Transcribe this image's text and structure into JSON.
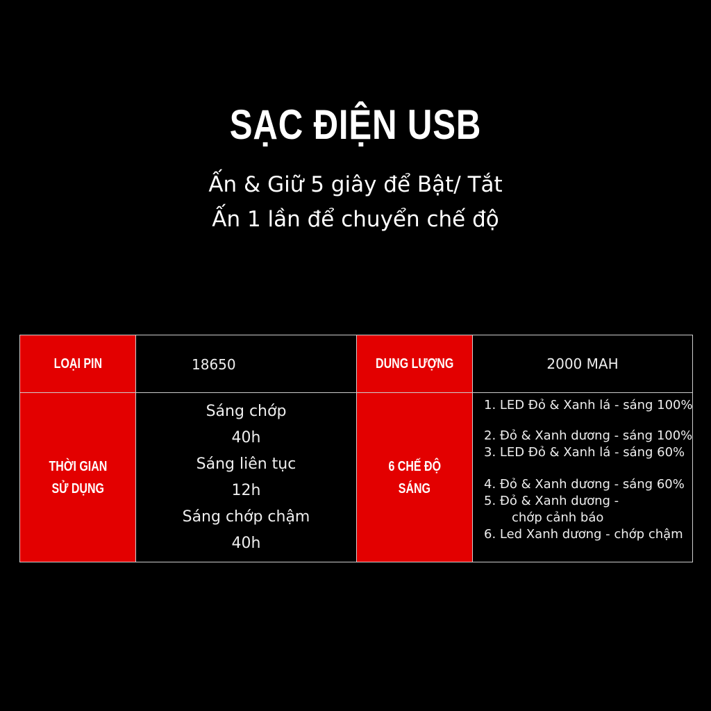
{
  "title": "SẠC ĐIỆN USB",
  "subtitle_lines": [
    "Ấn & Giữ 5 giây để Bật/ Tắt",
    "Ấn 1 lần để chuyển chế độ"
  ],
  "table": {
    "battery_label": "LOẠI PIN",
    "battery_value": "18650",
    "capacity_label": "DUNG LƯỢNG",
    "capacity_value": "2000 MAH",
    "usage_label": [
      "THỜI GIAN",
      "SỬ DỤNG"
    ],
    "usage": [
      {
        "mode": "Sáng chớp",
        "time": "40h"
      },
      {
        "mode": "Sáng liên tục",
        "time": "12h"
      },
      {
        "mode": "Sáng chớp chậm",
        "time": "40h"
      }
    ],
    "modes_label": [
      "6 CHẾ ĐỘ",
      "SÁNG"
    ],
    "modes": [
      "1. LED Đỏ & Xanh lá - sáng 100%",
      "2. Đỏ & Xanh dương - sáng 100%",
      "3. LED Đỏ & Xanh lá - sáng 60%",
      "4. Đỏ & Xanh dương - sáng 60%",
      "5. Đỏ & Xanh dương -",
      "chớp cảnh báo",
      "6. Led Xanh dương - chớp chậm"
    ]
  },
  "colors": {
    "accent": "#e30000",
    "background": "#000000"
  }
}
